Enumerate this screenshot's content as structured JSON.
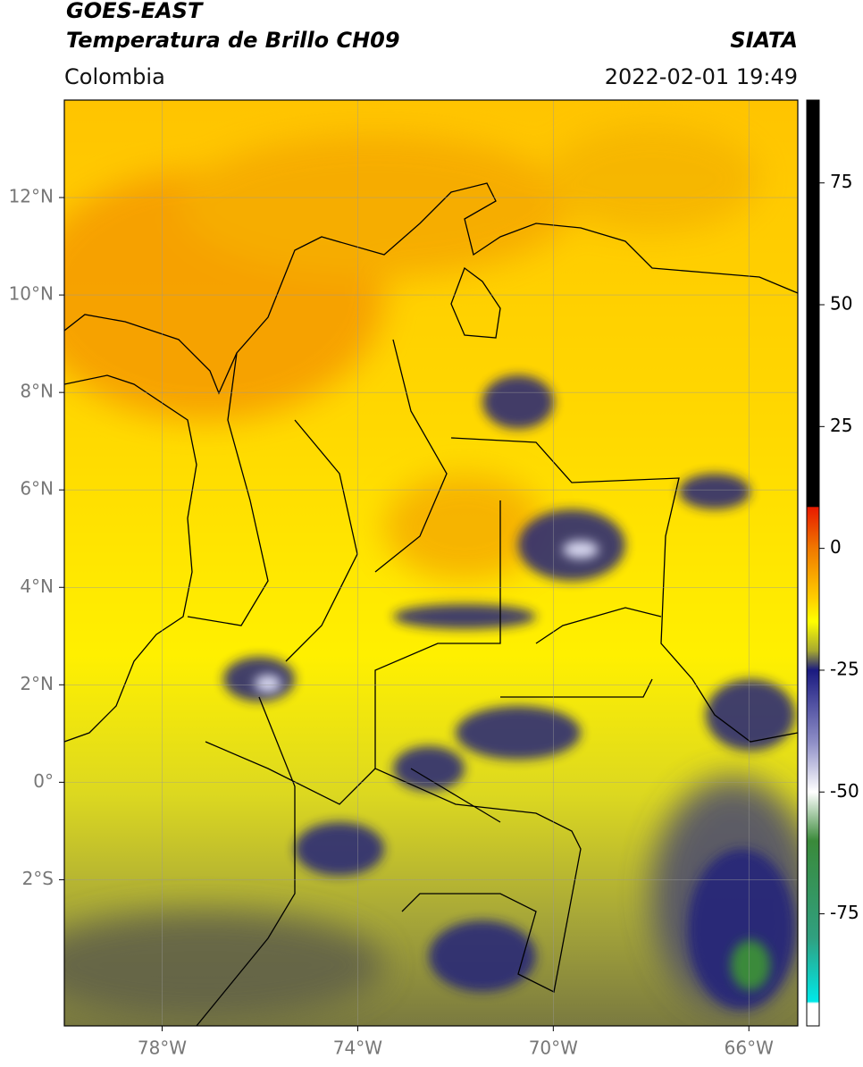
{
  "header": {
    "title": "GOES-EAST",
    "subtitle": "Temperatura de Brillo CH09",
    "source": "SIATA",
    "region": "Colombia",
    "datetime": "2022-02-01 19:49"
  },
  "map": {
    "lonlim": [
      -80,
      -65
    ],
    "latlim": [
      -5,
      14
    ],
    "grid": true,
    "xticks": [
      {
        "value": -78,
        "label": "78°W"
      },
      {
        "value": -74,
        "label": "74°W"
      },
      {
        "value": -70,
        "label": "70°W"
      },
      {
        "value": -66,
        "label": "66°W"
      }
    ],
    "yticks": [
      {
        "value": 12,
        "label": "12°N"
      },
      {
        "value": 10,
        "label": "10°N"
      },
      {
        "value": 8,
        "label": "8°N"
      },
      {
        "value": 6,
        "label": "6°N"
      },
      {
        "value": 4,
        "label": "4°N"
      },
      {
        "value": 2,
        "label": "2°N"
      },
      {
        "value": 0,
        "label": "0°"
      },
      {
        "value": -2,
        "label": "2°S"
      }
    ]
  },
  "colorbar": {
    "lim": [
      -98,
      92
    ],
    "ticks": [
      75,
      50,
      25,
      0,
      -25,
      -50,
      -75
    ],
    "stops": [
      {
        "value": 92,
        "color": "#000000"
      },
      {
        "value": 8.6,
        "color": "#000000"
      },
      {
        "value": 8.4,
        "color": "#e81a00"
      },
      {
        "value": 0,
        "color": "#f07800"
      },
      {
        "value": -10,
        "color": "#ffcc00"
      },
      {
        "value": -15,
        "color": "#ffff00"
      },
      {
        "value": -21,
        "color": "#a6a830"
      },
      {
        "value": -25,
        "color": "#1a1a80"
      },
      {
        "value": -40,
        "color": "#9090c8"
      },
      {
        "value": -50,
        "color": "#ffffff"
      },
      {
        "value": -60,
        "color": "#3a8a3a"
      },
      {
        "value": -80,
        "color": "#30a080"
      },
      {
        "value": -93,
        "color": "#00e8e8"
      },
      {
        "value": -93.4,
        "color": "#ffffff"
      },
      {
        "value": -98,
        "color": "#ffffff"
      }
    ]
  }
}
